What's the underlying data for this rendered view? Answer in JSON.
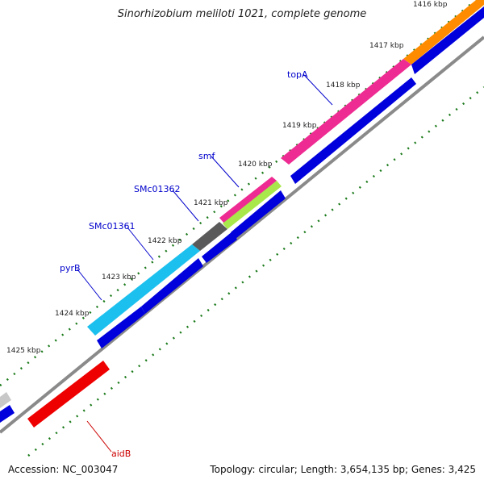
{
  "title": "Sinorhizobium meliloti 1021, complete genome",
  "footer": {
    "accession": "Accession: NC_003047",
    "summary": "Topology: circular; Length: 3,654,135 bp; Genes: 3,425"
  },
  "ticks": [
    "1416 kbp",
    "1417 kbp",
    "1418 kbp",
    "1419 kbp",
    "1420 kbp",
    "1421 kbp",
    "1422 kbp",
    "1423 kbp",
    "1424 kbp",
    "1425 kbp"
  ],
  "gene_labels": [
    {
      "name": "topA",
      "color": "#0000cc"
    },
    {
      "name": "smf",
      "color": "#0000cc"
    },
    {
      "name": "SMc01362",
      "color": "#0000cc"
    },
    {
      "name": "SMc01361",
      "color": "#0000cc"
    },
    {
      "name": "pyrB",
      "color": "#0000cc"
    },
    {
      "name": "aidB",
      "color": "#cc0000"
    }
  ],
  "colors": {
    "backbone": "#8a8a8a",
    "tick": "#1a7a1a",
    "cds": "#0000dd",
    "orange": "#ff8c00",
    "magenta": "#ee2b92",
    "gray_gene": "#5a5a5a",
    "lime": "#a8e84a",
    "cyan": "#1cc0ee",
    "red": "#ee0000",
    "light_gray": "#c8c8c8"
  }
}
